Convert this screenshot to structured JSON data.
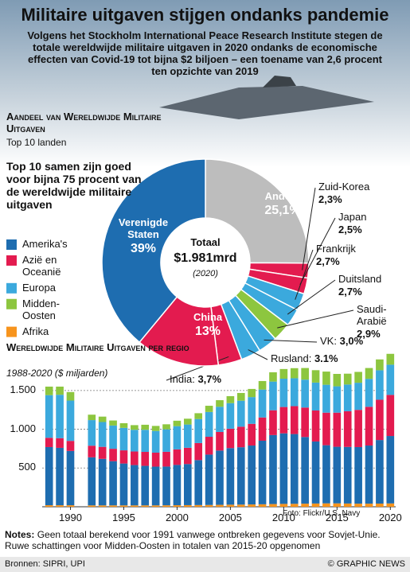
{
  "title": "Militaire uitgaven stijgen ondanks pandemie",
  "subtitle": "Volgens het Stockholm International Peace Research Institute stegen de totale wereldwijde militaire uitgaven in 2020 ondanks de economische effecten van Covid-19 tot bijna $2 biljoen – een toename van 2,6 procent ten opzichte van 2019",
  "photo_credit": "Foto: Flickr/U.S. Navy",
  "notes": {
    "label": "Notes:",
    "text": "Geen totaal berekend voor 1991 vanwege ontbreken gegevens voor Sovjet-Unie. Ruwe schattingen voor Midden-Oosten in totalen van 2015-20 opgenomen"
  },
  "sources": "Bronnen: SIPRI, UPI",
  "credit": "© GRAPHIC NEWS",
  "chart_data": [
    {
      "type": "donut",
      "title": "Aandeel van Wereldwijde Militaire Uitgaven",
      "subtitle": "Top 10 landen",
      "annotation": "Top 10 samen zijn goed voor bijna 75 procent van de wereldwijde militaire uitgaven",
      "center_label": "Totaal",
      "center_value": "$1.981mrd",
      "center_note": "(2020)",
      "categories": [
        "Andere",
        "Zuid-Korea",
        "Japan",
        "Frankrijk",
        "Duitsland",
        "Saudi-Arabië",
        "VK",
        "Rusland",
        "India",
        "China",
        "Verenigde Staten"
      ],
      "values": [
        25.1,
        2.3,
        2.5,
        2.7,
        2.7,
        2.9,
        3.0,
        3.1,
        3.7,
        13,
        39
      ],
      "value_labels": [
        "25,1%",
        "2,3%",
        "2,5%",
        "2,7%",
        "2,7%",
        "2,9%",
        "3,0%",
        "3.1%",
        "3,7%",
        "13%",
        "39%"
      ],
      "colors": [
        "#bdbdbd",
        "#e31b4f",
        "#e31b4f",
        "#3ba9dd",
        "#3ba9dd",
        "#8dc63f",
        "#3ba9dd",
        "#3ba9dd",
        "#e31b4f",
        "#e31b4f",
        "#1e6db0"
      ],
      "legend": [
        {
          "name": "Amerika's",
          "color": "#1e6db0"
        },
        {
          "name": "Azië en Oceanië",
          "color": "#e31b4f"
        },
        {
          "name": "Europa",
          "color": "#3ba9dd"
        },
        {
          "name": "Midden-Oosten",
          "color": "#8dc63f"
        },
        {
          "name": "Afrika",
          "color": "#f7941d"
        }
      ]
    },
    {
      "type": "stacked_bar",
      "title": "Wereldwijde Militaire Uitgaven per regio",
      "subtitle": "1988-2020 ($ miljarden)",
      "x": [
        1988,
        1989,
        1990,
        1991,
        1992,
        1993,
        1994,
        1995,
        1996,
        1997,
        1998,
        1999,
        2000,
        2001,
        2002,
        2003,
        2004,
        2005,
        2006,
        2007,
        2008,
        2009,
        2010,
        2011,
        2012,
        2013,
        2014,
        2015,
        2016,
        2017,
        2018,
        2019,
        2020
      ],
      "xlim": [
        1987.5,
        2020.5
      ],
      "xticks": [
        1990,
        1995,
        2000,
        2005,
        2010,
        2015,
        2020
      ],
      "ylim": [
        0,
        1950
      ],
      "yticks": [
        500,
        {
          "value": 1000,
          "label": "1.000"
        },
        {
          "value": 1500,
          "label": "1.500"
        }
      ],
      "grid": true,
      "series": [
        {
          "name": "Afrika",
          "color": "#f7941d",
          "values": [
            20,
            20,
            20,
            null,
            18,
            18,
            18,
            18,
            18,
            18,
            18,
            19,
            20,
            21,
            22,
            23,
            25,
            27,
            28,
            30,
            32,
            35,
            37,
            38,
            40,
            42,
            44,
            44,
            42,
            40,
            40,
            41,
            43
          ]
        },
        {
          "name": "Amerika's",
          "color": "#1e6db0",
          "values": [
            750,
            740,
            700,
            null,
            620,
            600,
            570,
            540,
            520,
            510,
            500,
            500,
            520,
            530,
            580,
            650,
            700,
            730,
            740,
            760,
            820,
            890,
            910,
            900,
            860,
            800,
            750,
            730,
            730,
            730,
            750,
            820,
            870
          ]
        },
        {
          "name": "Azië en Oceanië",
          "color": "#e31b4f",
          "values": [
            120,
            125,
            130,
            null,
            150,
            155,
            160,
            170,
            175,
            180,
            180,
            190,
            200,
            210,
            220,
            230,
            240,
            250,
            265,
            280,
            300,
            320,
            340,
            360,
            380,
            400,
            420,
            440,
            460,
            480,
            500,
            520,
            530
          ]
        },
        {
          "name": "Europa",
          "color": "#3ba9dd",
          "values": [
            550,
            560,
            520,
            null,
            330,
            320,
            300,
            290,
            280,
            285,
            280,
            290,
            300,
            300,
            310,
            320,
            325,
            330,
            335,
            345,
            360,
            370,
            365,
            360,
            360,
            360,
            360,
            340,
            345,
            350,
            360,
            380,
            390
          ]
        },
        {
          "name": "Midden-Oosten",
          "color": "#8dc63f",
          "values": [
            110,
            105,
            110,
            null,
            70,
            70,
            65,
            60,
            60,
            65,
            65,
            65,
            70,
            75,
            75,
            80,
            85,
            90,
            100,
            105,
            110,
            120,
            125,
            130,
            150,
            160,
            170,
            160,
            140,
            140,
            140,
            140,
            140
          ]
        }
      ]
    }
  ]
}
